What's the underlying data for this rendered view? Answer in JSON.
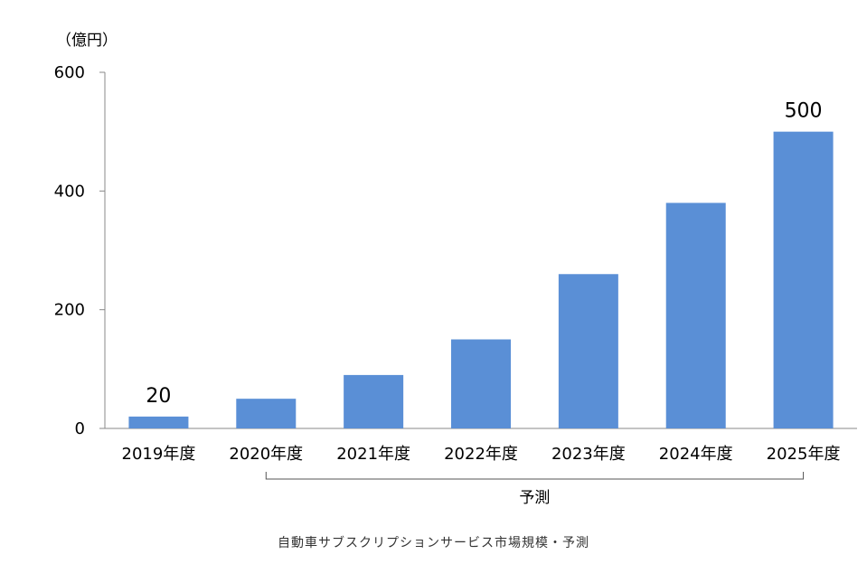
{
  "chart_data": {
    "type": "bar",
    "unit_label": "（億円）",
    "categories": [
      "2019年度",
      "2020年度",
      "2021年度",
      "2022年度",
      "2023年度",
      "2024年度",
      "2025年度"
    ],
    "values": [
      20,
      50,
      90,
      150,
      260,
      380,
      500
    ],
    "data_labels": [
      {
        "index": 0,
        "text": "20"
      },
      {
        "index": 6,
        "text": "500"
      }
    ],
    "ylim": [
      0,
      600
    ],
    "yticks": [
      0,
      200,
      400,
      600
    ],
    "bar_color": "#5a8fd6",
    "grid": false,
    "legend": "none",
    "forecast_bracket": {
      "from_index": 1,
      "to_index": 6,
      "label": "予測"
    }
  },
  "caption": "自動車サブスクリプションサービス市場規模・予測"
}
